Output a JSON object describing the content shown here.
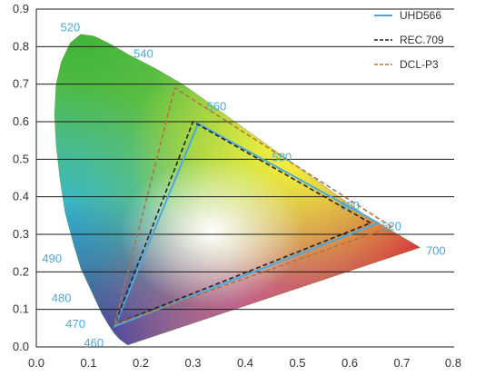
{
  "chart_data": {
    "type": "scatter",
    "title": "",
    "xlabel": "",
    "ylabel": "",
    "xlim": [
      0.0,
      0.8
    ],
    "ylim": [
      0.0,
      0.9
    ],
    "x_ticks": [
      "0.0",
      "0.1",
      "0.2",
      "0.3",
      "0.4",
      "0.5",
      "0.6",
      "0.7",
      "0.8"
    ],
    "y_ticks": [
      "0.0",
      "0.1",
      "0.2",
      "0.3",
      "0.4",
      "0.5",
      "0.6",
      "0.7",
      "0.8",
      "0.9"
    ],
    "grid": "horizontal",
    "legend_position": "top-right",
    "spectral_locus": [
      [
        0.175,
        0.005
      ],
      [
        0.16,
        0.02
      ],
      [
        0.15,
        0.035
      ],
      [
        0.14,
        0.055
      ],
      [
        0.125,
        0.09
      ],
      [
        0.105,
        0.15
      ],
      [
        0.085,
        0.21
      ],
      [
        0.07,
        0.28
      ],
      [
        0.055,
        0.36
      ],
      [
        0.045,
        0.45
      ],
      [
        0.038,
        0.54
      ],
      [
        0.035,
        0.62
      ],
      [
        0.038,
        0.7
      ],
      [
        0.048,
        0.76
      ],
      [
        0.065,
        0.81
      ],
      [
        0.085,
        0.833
      ],
      [
        0.11,
        0.828
      ],
      [
        0.14,
        0.808
      ],
      [
        0.175,
        0.78
      ],
      [
        0.23,
        0.74
      ],
      [
        0.28,
        0.7
      ],
      [
        0.33,
        0.65
      ],
      [
        0.38,
        0.6
      ],
      [
        0.43,
        0.55
      ],
      [
        0.48,
        0.5
      ],
      [
        0.53,
        0.45
      ],
      [
        0.58,
        0.4
      ],
      [
        0.63,
        0.35
      ],
      [
        0.68,
        0.31
      ],
      [
        0.735,
        0.265
      ]
    ],
    "wavelength_labels": [
      {
        "text": "520",
        "x": 0.065,
        "y": 0.85
      },
      {
        "text": "540",
        "x": 0.205,
        "y": 0.78
      },
      {
        "text": "560",
        "x": 0.345,
        "y": 0.64
      },
      {
        "text": "580",
        "x": 0.47,
        "y": 0.505
      },
      {
        "text": "600",
        "x": 0.6,
        "y": 0.375
      },
      {
        "text": "620",
        "x": 0.68,
        "y": 0.32
      },
      {
        "text": "700",
        "x": 0.765,
        "y": 0.255
      },
      {
        "text": "490",
        "x": 0.03,
        "y": 0.235
      },
      {
        "text": "480",
        "x": 0.048,
        "y": 0.13
      },
      {
        "text": "470",
        "x": 0.075,
        "y": 0.06
      },
      {
        "text": "460",
        "x": 0.11,
        "y": 0.01
      }
    ],
    "wavelength_label_color": "#4aa9de",
    "series": [
      {
        "name": "UHD566",
        "color": "#4aa9de",
        "style": "solid",
        "points": [
          [
            0.655,
            0.33
          ],
          [
            0.31,
            0.595
          ],
          [
            0.15,
            0.055
          ]
        ]
      },
      {
        "name": "REC.709",
        "color": "#222222",
        "style": "dashed",
        "points": [
          [
            0.64,
            0.33
          ],
          [
            0.3,
            0.6
          ],
          [
            0.15,
            0.06
          ]
        ]
      },
      {
        "name": "DCL-P3",
        "color": "#b5733c",
        "style": "dashed",
        "points": [
          [
            0.68,
            0.32
          ],
          [
            0.265,
            0.69
          ],
          [
            0.15,
            0.06
          ]
        ]
      }
    ]
  }
}
